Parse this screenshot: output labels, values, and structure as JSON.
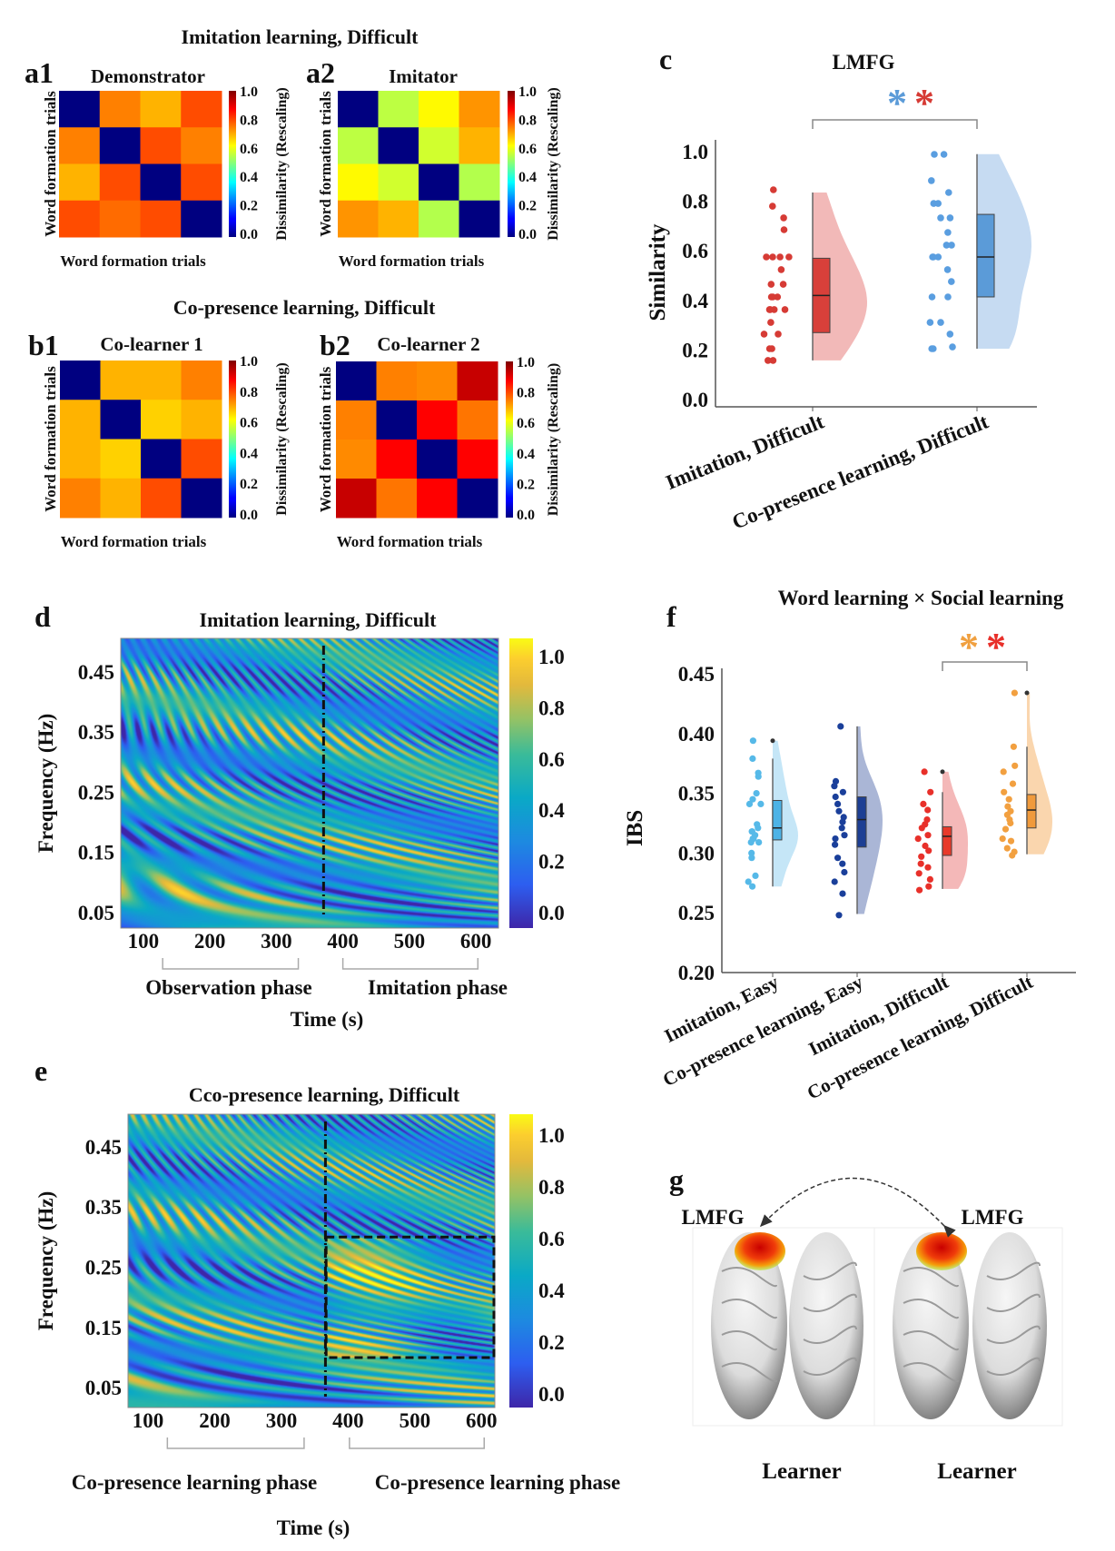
{
  "figure": {
    "title_a": "Imitation learning, Difficult",
    "title_b": "Co-presence learning, Difficult"
  },
  "chart_data": [
    {
      "panel": "a1",
      "type": "heatmap",
      "subtitle": "Demonstrator",
      "xlabel": "Word formation trials",
      "ylabel": "Word formation trials",
      "colorbar_label": "Dissimilarity (Rescaling)",
      "colormap": "jet",
      "zlim": [
        0,
        1
      ],
      "colorbar_ticks": [
        "1.0",
        "0.8",
        "0.6",
        "0.4",
        "0.2",
        "0.0"
      ],
      "values": [
        [
          0,
          0.75,
          0.7,
          0.8
        ],
        [
          0.75,
          0,
          0.8,
          0.75
        ],
        [
          0.7,
          0.8,
          0,
          0.8
        ],
        [
          0.8,
          0.77,
          0.8,
          0
        ]
      ]
    },
    {
      "panel": "a2",
      "type": "heatmap",
      "subtitle": "Imitator",
      "xlabel": "Word formation trials",
      "ylabel": "Word formation trials",
      "colorbar_label": "Dissimilarity (Rescaling)",
      "colormap": "jet",
      "zlim": [
        0,
        1
      ],
      "colorbar_ticks": [
        "1.0",
        "0.8",
        "0.6",
        "0.4",
        "0.2",
        "0.0"
      ],
      "values": [
        [
          0,
          0.56,
          0.63,
          0.73
        ],
        [
          0.56,
          0,
          0.58,
          0.7
        ],
        [
          0.63,
          0.58,
          0,
          0.55
        ],
        [
          0.73,
          0.7,
          0.55,
          0
        ]
      ]
    },
    {
      "panel": "b1",
      "type": "heatmap",
      "subtitle": "Co-learner 1",
      "xlabel": "Word formation trials",
      "ylabel": "Word formation trials",
      "colorbar_label": "Dissimilarity (Rescaling)",
      "colormap": "jet",
      "zlim": [
        0,
        1
      ],
      "colorbar_ticks": [
        "1.0",
        "0.8",
        "0.6",
        "0.4",
        "0.2",
        "0.0"
      ],
      "values": [
        [
          0,
          0.7,
          0.7,
          0.75
        ],
        [
          0.7,
          0,
          0.67,
          0.7
        ],
        [
          0.7,
          0.67,
          0,
          0.8
        ],
        [
          0.75,
          0.7,
          0.8,
          0
        ]
      ]
    },
    {
      "panel": "b2",
      "type": "heatmap",
      "subtitle": "Co-learner 2",
      "xlabel": "Word formation trials",
      "ylabel": "Word formation trials",
      "colorbar_label": "Dissimilarity (Rescaling)",
      "colormap": "jet",
      "zlim": [
        0,
        1
      ],
      "colorbar_ticks": [
        "1.0",
        "0.8",
        "0.6",
        "0.4",
        "0.2",
        "0.0"
      ],
      "values": [
        [
          0,
          0.75,
          0.74,
          0.93
        ],
        [
          0.75,
          0,
          0.875,
          0.76
        ],
        [
          0.74,
          0.875,
          0,
          0.875
        ],
        [
          0.93,
          0.76,
          0.875,
          0
        ]
      ]
    },
    {
      "panel": "c",
      "type": "scatter",
      "title": "LMFG",
      "ylabel": "Similarity",
      "ylim": [
        0,
        1
      ],
      "yticks": [
        0,
        0.2,
        0.4,
        0.6,
        0.8,
        1.0
      ],
      "ytick_labels": [
        "0.0",
        "0.2",
        "0.4",
        "0.6",
        "0.8",
        "1.0"
      ],
      "categories": [
        "Imitation, Difficult",
        "Co-presence learning, Difficult"
      ],
      "significance": {
        "between": [
          0,
          1
        ],
        "marks": [
          {
            "symbol": "*",
            "color": "#5b9bd8"
          },
          {
            "symbol": "*",
            "color": "#d63b35"
          }
        ]
      },
      "series": [
        {
          "category": "Imitation, Difficult",
          "color": "#d63b35",
          "box_color": "#d8403a",
          "violin_color": "#f2b9b8",
          "values": [
            0.846,
            0.78,
            0.733,
            0.685,
            0.575,
            0.575,
            0.575,
            0.575,
            0.524,
            0.465,
            0.465,
            0.414,
            0.414,
            0.414,
            0.363,
            0.363,
            0.363,
            0.363,
            0.311,
            0.264,
            0.264,
            0.205,
            0.205,
            0.158,
            0.158
          ],
          "box": {
            "q1": 0.27,
            "median": 0.42,
            "q3": 0.57,
            "whisker_low": 0.158,
            "whisker_high": 0.835
          }
        },
        {
          "category": "Co-presence learning, Difficult",
          "color": "#5a9ee0",
          "box_color": "#5b9bd8",
          "violin_color": "#c6dbf2",
          "values": [
            0.989,
            0.989,
            0.883,
            0.835,
            0.791,
            0.791,
            0.733,
            0.733,
            0.674,
            0.623,
            0.623,
            0.575,
            0.575,
            0.575,
            0.524,
            0.476,
            0.414,
            0.414,
            0.311,
            0.311,
            0.264,
            0.212,
            0.205,
            0.205
          ],
          "box": {
            "q1": 0.414,
            "median": 0.575,
            "q3": 0.747,
            "whisker_low": 0.205,
            "whisker_high": 0.99
          }
        }
      ]
    },
    {
      "panel": "d",
      "type": "heatmap",
      "title": "Imitation learning, Difficult",
      "xlabel": "Time (s)",
      "ylabel": "Frequency (Hz)",
      "colormap": "parula",
      "xlim": [
        66,
        634
      ],
      "ylim": [
        0.024,
        0.506
      ],
      "xticks": [
        100,
        200,
        300,
        400,
        500,
        600
      ],
      "xtick_labels": [
        "100",
        "200",
        "300",
        "400",
        "500",
        "600"
      ],
      "yticks": [
        0.45,
        0.35,
        0.25,
        0.15,
        0.05
      ],
      "ytick_labels": [
        "0.45",
        "0.35",
        "0.25",
        "0.15",
        "0.05"
      ],
      "colorbar_ticks": [
        "1.0",
        "0.8",
        "0.6",
        "0.4",
        "0.2",
        "0.0"
      ],
      "divider_time_s": 371,
      "phases": [
        {
          "label": "Observation phase",
          "range_s": [
            129,
            333
          ]
        },
        {
          "label": "Imitation phase",
          "range_s": [
            400,
            603
          ]
        }
      ]
    },
    {
      "panel": "e",
      "type": "heatmap",
      "title": "Cco-presence learning, Difficult",
      "xlabel": "Time (s)",
      "ylabel": "Frequency (Hz)",
      "colormap": "parula",
      "xlim": [
        70,
        620
      ],
      "ylim": [
        0.017,
        0.504
      ],
      "xticks": [
        100,
        200,
        300,
        400,
        500,
        600
      ],
      "xtick_labels": [
        "100",
        "200",
        "300",
        "400",
        "500",
        "600"
      ],
      "yticks": [
        0.45,
        0.35,
        0.25,
        0.15,
        0.05
      ],
      "ytick_labels": [
        "0.45",
        "0.35",
        "0.25",
        "0.15",
        "0.05"
      ],
      "colorbar_ticks": [
        "1.0",
        "0.8",
        "0.6",
        "0.4",
        "0.2",
        "0.0"
      ],
      "divider_time_s": 366,
      "highlight_box": {
        "time_s": [
          367,
          620
        ],
        "freq_hz": [
          0.1,
          0.3
        ]
      },
      "phases": [
        {
          "label": "Co-presence learning phase",
          "range_s": [
            129,
            334
          ]
        },
        {
          "label": "Co-presence learning phase",
          "range_s": [
            402,
            604
          ]
        }
      ]
    },
    {
      "panel": "f",
      "type": "scatter",
      "title": "Word learning  ×  Social learning",
      "ylabel": "IBS",
      "ylim": [
        0.2,
        0.45
      ],
      "yticks": [
        0.2,
        0.25,
        0.3,
        0.35,
        0.4,
        0.45
      ],
      "ytick_labels": [
        "0.20",
        "0.25",
        "0.30",
        "0.35",
        "0.40",
        "0.45"
      ],
      "categories": [
        "Imitation, Easy",
        "Co-presence learning, Easy",
        "Imitation, Difficult",
        "Co-presence learning, Difficult"
      ],
      "significance": {
        "between": [
          2,
          3
        ],
        "marks": [
          {
            "symbol": "*",
            "color": "#f0a040"
          },
          {
            "symbol": "*",
            "color": "#e8302a"
          }
        ]
      },
      "series": [
        {
          "category": "Imitation, Easy",
          "color": "#56b9e8",
          "box_color": "#4db3e6",
          "violin_color": "#c5e6f7",
          "values": [
            0.394,
            0.379,
            0.367,
            0.364,
            0.35,
            0.345,
            0.341,
            0.341,
            0.324,
            0.321,
            0.318,
            0.318,
            0.315,
            0.312,
            0.312,
            0.309,
            0.309,
            0.3,
            0.296,
            0.281,
            0.276,
            0.272
          ],
          "box": {
            "q1": 0.311,
            "median": 0.321,
            "q3": 0.344,
            "whisker_low": 0.272,
            "whisker_high": 0.379
          },
          "outliers": [
            0.394
          ]
        },
        {
          "category": "Co-presence learning, Easy",
          "color": "#1a3f9a",
          "box_color": "#1d3f94",
          "violin_color": "#aab6d6",
          "values": [
            0.406,
            0.36,
            0.356,
            0.351,
            0.347,
            0.341,
            0.335,
            0.33,
            0.326,
            0.321,
            0.315,
            0.312,
            0.307,
            0.296,
            0.291,
            0.284,
            0.276,
            0.266,
            0.248
          ],
          "box": {
            "q1": 0.305,
            "median": 0.328,
            "q3": 0.347,
            "whisker_low": 0.249,
            "whisker_high": 0.406
          },
          "outliers": []
        },
        {
          "category": "Imitation, Difficult",
          "color": "#e8302a",
          "box_color": "#e83a2a",
          "violin_color": "#f4b8b8",
          "values": [
            0.368,
            0.351,
            0.341,
            0.336,
            0.328,
            0.324,
            0.321,
            0.315,
            0.312,
            0.306,
            0.302,
            0.297,
            0.291,
            0.288,
            0.283,
            0.278,
            0.272,
            0.269
          ],
          "box": {
            "q1": 0.298,
            "median": 0.314,
            "q3": 0.322,
            "whisker_low": 0.27,
            "whisker_high": 0.351
          },
          "outliers": [
            0.368
          ]
        },
        {
          "category": "Co-presence learning, Difficult",
          "color": "#f2a040",
          "box_color": "#f09a3c",
          "violin_color": "#fad6ae",
          "values": [
            0.434,
            0.389,
            0.373,
            0.368,
            0.358,
            0.351,
            0.345,
            0.339,
            0.335,
            0.332,
            0.328,
            0.325,
            0.32,
            0.312,
            0.31,
            0.304,
            0.301,
            0.298
          ],
          "box": {
            "q1": 0.321,
            "median": 0.336,
            "q3": 0.349,
            "whisker_low": 0.299,
            "whisker_high": 0.389
          },
          "outliers": [
            0.434
          ]
        }
      ]
    }
  ],
  "panel_g": {
    "panel": "g",
    "regions": [
      "LMFG",
      "LMFG"
    ],
    "subjects": [
      "Learner",
      "Learner"
    ]
  }
}
